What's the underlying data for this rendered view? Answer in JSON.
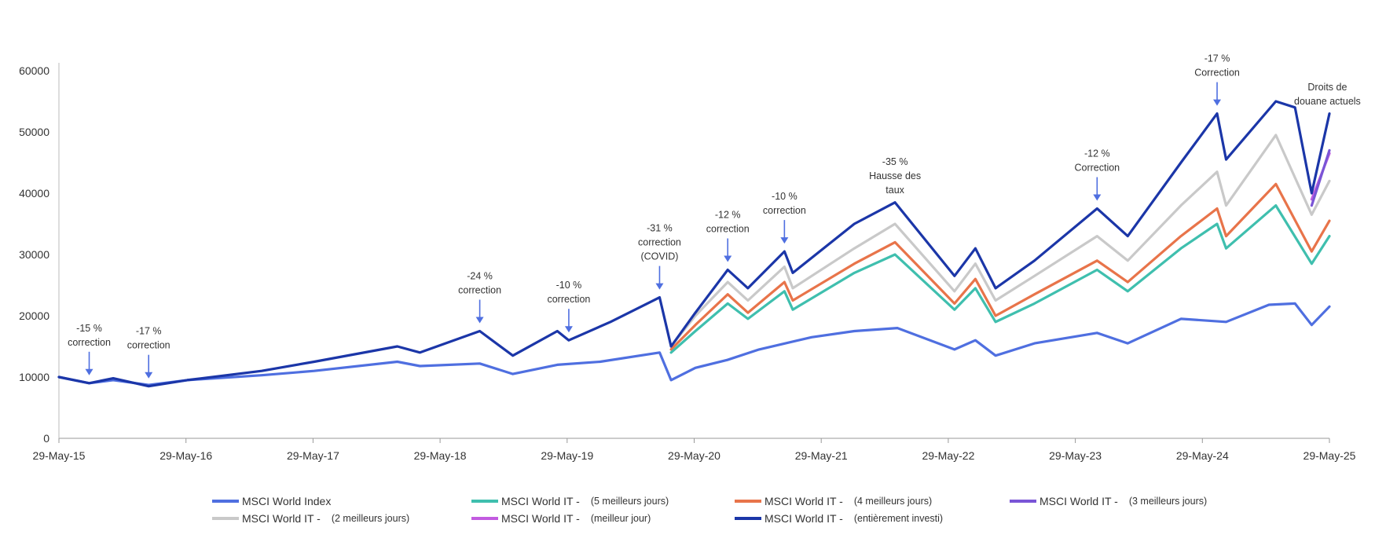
{
  "chart_data": {
    "type": "line",
    "title": "",
    "xlabel": "",
    "ylabel": "",
    "x_ticks": [
      "29-May-15",
      "29-May-16",
      "29-May-17",
      "29-May-18",
      "29-May-19",
      "29-May-20",
      "29-May-21",
      "29-May-22",
      "29-May-23",
      "29-May-24",
      "29-May-25"
    ],
    "y_ticks": [
      "0",
      "10000",
      "20000",
      "30000",
      "40000",
      "50000",
      "60000"
    ],
    "ylim": [
      0,
      60000
    ],
    "xlim": [
      "2015-05-29",
      "2025-05-29"
    ],
    "grid": false,
    "legend_position": "bottom",
    "series": [
      {
        "name": "MSCI World Index",
        "color": "#4f6fe0",
        "points": [
          [
            "2015-05-29",
            10000
          ],
          [
            "2015-08-24",
            9000
          ],
          [
            "2015-11-01",
            9500
          ],
          [
            "2016-02-11",
            8700
          ],
          [
            "2016-06-01",
            9500
          ],
          [
            "2017-01-01",
            10300
          ],
          [
            "2017-06-01",
            11000
          ],
          [
            "2018-01-26",
            12500
          ],
          [
            "2018-04-01",
            11800
          ],
          [
            "2018-09-20",
            12200
          ],
          [
            "2018-12-24",
            10500
          ],
          [
            "2019-05-01",
            12000
          ],
          [
            "2019-09-01",
            12500
          ],
          [
            "2020-02-19",
            14000
          ],
          [
            "2020-03-23",
            9500
          ],
          [
            "2020-06-01",
            11500
          ],
          [
            "2020-09-01",
            12800
          ],
          [
            "2020-12-01",
            14500
          ],
          [
            "2021-05-01",
            16500
          ],
          [
            "2021-09-01",
            17500
          ],
          [
            "2022-01-03",
            18000
          ],
          [
            "2022-06-16",
            14500
          ],
          [
            "2022-08-15",
            16000
          ],
          [
            "2022-10-12",
            13500
          ],
          [
            "2023-02-01",
            15500
          ],
          [
            "2023-07-31",
            17200
          ],
          [
            "2023-10-27",
            15500
          ],
          [
            "2024-03-28",
            19500
          ],
          [
            "2024-08-05",
            19000
          ],
          [
            "2024-12-06",
            21800
          ],
          [
            "2025-02-19",
            22000
          ],
          [
            "2025-04-08",
            18500
          ],
          [
            "2025-05-29",
            21500
          ]
        ]
      },
      {
        "name": "MSCI World IT - (5 meilleurs jours)",
        "color": "#3fbfae",
        "points": [
          [
            "2020-03-23",
            14000
          ],
          [
            "2020-06-01",
            17500
          ],
          [
            "2020-09-02",
            22000
          ],
          [
            "2020-10-30",
            19500
          ],
          [
            "2021-02-12",
            24000
          ],
          [
            "2021-03-08",
            21000
          ],
          [
            "2021-09-01",
            27000
          ],
          [
            "2021-12-27",
            30000
          ],
          [
            "2022-06-16",
            21000
          ],
          [
            "2022-08-15",
            24500
          ],
          [
            "2022-10-12",
            19000
          ],
          [
            "2023-02-01",
            22000
          ],
          [
            "2023-07-31",
            27500
          ],
          [
            "2023-10-27",
            24000
          ],
          [
            "2024-03-28",
            31000
          ],
          [
            "2024-07-10",
            35000
          ],
          [
            "2024-08-05",
            31000
          ],
          [
            "2024-12-26",
            38000
          ],
          [
            "2025-04-08",
            28500
          ],
          [
            "2025-05-29",
            33000
          ]
        ]
      },
      {
        "name": "MSCI World IT - (4 meilleurs jours)",
        "color": "#e8744a",
        "points": [
          [
            "2020-03-23",
            14500
          ],
          [
            "2020-06-01",
            18500
          ],
          [
            "2020-09-02",
            23500
          ],
          [
            "2020-10-30",
            20500
          ],
          [
            "2021-02-12",
            25500
          ],
          [
            "2021-03-08",
            22500
          ],
          [
            "2021-09-01",
            28500
          ],
          [
            "2021-12-27",
            32000
          ],
          [
            "2022-06-16",
            22000
          ],
          [
            "2022-08-15",
            26000
          ],
          [
            "2022-10-12",
            20000
          ],
          [
            "2023-02-01",
            23500
          ],
          [
            "2023-07-31",
            29000
          ],
          [
            "2023-10-27",
            25500
          ],
          [
            "2024-03-28",
            33000
          ],
          [
            "2024-07-10",
            37500
          ],
          [
            "2024-08-05",
            33000
          ],
          [
            "2024-12-26",
            41500
          ],
          [
            "2025-04-08",
            30500
          ],
          [
            "2025-05-29",
            35500
          ]
        ]
      },
      {
        "name": "MSCI World IT - (3 meilleurs jours)",
        "color": "#7a55d6",
        "points": [
          [
            "2025-04-08",
            38000
          ],
          [
            "2025-05-29",
            47000
          ]
        ]
      },
      {
        "name": "MSCI World IT - (2 meilleurs jours)",
        "color": "#c9c9c9",
        "points": [
          [
            "2020-03-23",
            15000
          ],
          [
            "2020-06-01",
            20000
          ],
          [
            "2020-09-02",
            25500
          ],
          [
            "2020-10-30",
            22500
          ],
          [
            "2021-02-12",
            28000
          ],
          [
            "2021-03-08",
            24500
          ],
          [
            "2021-09-01",
            31000
          ],
          [
            "2021-12-27",
            35000
          ],
          [
            "2022-06-16",
            24000
          ],
          [
            "2022-08-15",
            28500
          ],
          [
            "2022-10-12",
            22500
          ],
          [
            "2023-02-01",
            26500
          ],
          [
            "2023-07-31",
            33000
          ],
          [
            "2023-10-27",
            29000
          ],
          [
            "2024-03-28",
            38000
          ],
          [
            "2024-07-10",
            43500
          ],
          [
            "2024-08-05",
            38000
          ],
          [
            "2024-12-26",
            49500
          ],
          [
            "2025-04-08",
            36500
          ],
          [
            "2025-05-29",
            42000
          ]
        ]
      },
      {
        "name": "MSCI World IT - (meilleur jour)",
        "color": "#c25be0",
        "points": [
          [
            "2025-04-08",
            39000
          ],
          [
            "2025-05-29",
            46500
          ]
        ]
      },
      {
        "name": "MSCI World IT - (entièrement investi)",
        "color": "#1b36a8",
        "points": [
          [
            "2015-05-29",
            10000
          ],
          [
            "2015-08-24",
            9000
          ],
          [
            "2015-11-01",
            9800
          ],
          [
            "2016-02-11",
            8500
          ],
          [
            "2016-06-01",
            9500
          ],
          [
            "2017-01-01",
            11000
          ],
          [
            "2017-06-01",
            12500
          ],
          [
            "2018-01-26",
            15000
          ],
          [
            "2018-04-01",
            14000
          ],
          [
            "2018-09-20",
            17500
          ],
          [
            "2018-12-24",
            13500
          ],
          [
            "2019-05-01",
            17500
          ],
          [
            "2019-06-03",
            16000
          ],
          [
            "2019-10-01",
            19000
          ],
          [
            "2020-02-19",
            23000
          ],
          [
            "2020-03-23",
            15000
          ],
          [
            "2020-06-01",
            20500
          ],
          [
            "2020-09-02",
            27500
          ],
          [
            "2020-10-30",
            24500
          ],
          [
            "2021-02-12",
            30500
          ],
          [
            "2021-03-08",
            27000
          ],
          [
            "2021-09-01",
            35000
          ],
          [
            "2021-12-27",
            38500
          ],
          [
            "2022-06-16",
            26500
          ],
          [
            "2022-08-15",
            31000
          ],
          [
            "2022-10-12",
            24500
          ],
          [
            "2023-02-01",
            29000
          ],
          [
            "2023-07-31",
            37500
          ],
          [
            "2023-10-27",
            33000
          ],
          [
            "2024-03-28",
            45000
          ],
          [
            "2024-07-10",
            53000
          ],
          [
            "2024-08-05",
            45500
          ],
          [
            "2024-12-26",
            55000
          ],
          [
            "2025-02-19",
            54000
          ],
          [
            "2025-04-08",
            40000
          ],
          [
            "2025-05-29",
            53000
          ]
        ]
      }
    ],
    "annotations": [
      {
        "lines": [
          "-15 %",
          "correction"
        ],
        "x": "2015-08-24",
        "y": 9000
      },
      {
        "lines": [
          "-17 %",
          "correction"
        ],
        "x": "2016-02-11",
        "y": 8500
      },
      {
        "lines": [
          "-24 %",
          "correction"
        ],
        "x": "2018-09-20",
        "y": 17500
      },
      {
        "lines": [
          "-10 %",
          "correction"
        ],
        "x": "2019-06-03",
        "y": 16000
      },
      {
        "lines": [
          "-31 %",
          "correction",
          "(COVID)"
        ],
        "x": "2020-02-19",
        "y": 23000
      },
      {
        "lines": [
          "-12 %",
          "correction"
        ],
        "x": "2020-09-02",
        "y": 27500
      },
      {
        "lines": [
          "-10 %",
          "correction"
        ],
        "x": "2021-02-12",
        "y": 30500
      },
      {
        "lines": [
          "-35 %",
          "Hausse des",
          "taux"
        ],
        "x": "2021-12-27",
        "y": null
      },
      {
        "lines": [
          "-12 %",
          "Correction"
        ],
        "x": "2023-07-31",
        "y": 37500
      },
      {
        "lines": [
          "-17 %",
          "Correction"
        ],
        "x": "2024-07-10",
        "y": 53000
      },
      {
        "lines": [
          "Droits de",
          "douane actuels"
        ],
        "x": "2025-04-08",
        "y": null
      }
    ]
  },
  "legend": [
    {
      "label": "MSCI World Index",
      "sub": "",
      "color": "#4f6fe0"
    },
    {
      "label": "MSCI World IT -",
      "sub": "(5 meilleurs jours)",
      "color": "#3fbfae"
    },
    {
      "label": "MSCI World IT -",
      "sub": "(4 meilleurs jours)",
      "color": "#e8744a"
    },
    {
      "label": "MSCI World IT -",
      "sub": "(3 meilleurs jours)",
      "color": "#7a55d6"
    },
    {
      "label": "MSCI World IT -",
      "sub": "(2 meilleurs jours)",
      "color": "#c9c9c9"
    },
    {
      "label": "MSCI World IT -",
      "sub": "(meilleur jour)",
      "color": "#c25be0"
    },
    {
      "label": "MSCI World IT -",
      "sub": "(entièrement investi)",
      "color": "#1b36a8"
    }
  ]
}
